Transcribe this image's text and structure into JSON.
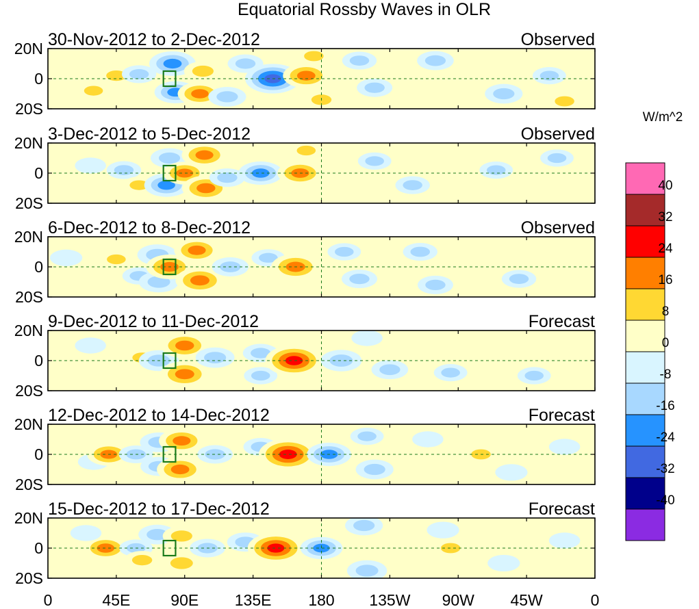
{
  "title": "Equatorial Rossby Waves in OLR",
  "units_label": "W/m^2",
  "lat_ticks": [
    "20N",
    "0",
    "20S"
  ],
  "lon_ticks": [
    "0",
    "45E",
    "90E",
    "135E",
    "180",
    "135W",
    "90W",
    "45W",
    "0"
  ],
  "colorbar": {
    "colors": [
      "#ff69b4",
      "#a52a2a",
      "#ff0000",
      "#ff7f00",
      "#ffd833",
      "#ffffc8",
      "#d9f5ff",
      "#a8d8ff",
      "#2693ff",
      "#4169e1",
      "#00008b",
      "#8b2be2"
    ],
    "labels": [
      "40",
      "32",
      "24",
      "16",
      "8",
      "0",
      "-8",
      "-16",
      "-24",
      "-32",
      "-40"
    ]
  },
  "panels": [
    {
      "dates": "30-Nov-2012 to 2-Dec-2012",
      "status": "Observed"
    },
    {
      "dates": "3-Dec-2012 to 5-Dec-2012",
      "status": "Observed"
    },
    {
      "dates": "6-Dec-2012 to 8-Dec-2012",
      "status": "Observed"
    },
    {
      "dates": "9-Dec-2012 to 11-Dec-2012",
      "status": "Forecast"
    },
    {
      "dates": "12-Dec-2012 to 14-Dec-2012",
      "status": "Forecast"
    },
    {
      "dates": "15-Dec-2012 to 17-Dec-2012",
      "status": "Forecast"
    }
  ],
  "field_anomalies": [
    [
      {
        "lon": 10,
        "lat": 4,
        "value": 7
      },
      {
        "lon": 30,
        "lat": -8,
        "value": 8
      },
      {
        "lon": 45,
        "lat": 2,
        "value": 10
      },
      {
        "lon": 60,
        "lat": 3,
        "value": -9
      },
      {
        "lon": 82,
        "lat": 10,
        "value": -20
      },
      {
        "lon": 84,
        "lat": -9,
        "value": -16
      },
      {
        "lon": 102,
        "lat": 5,
        "value": 12
      },
      {
        "lon": 100,
        "lat": -10,
        "value": 18
      },
      {
        "lon": 118,
        "lat": -12,
        "value": -12
      },
      {
        "lon": 148,
        "lat": 0,
        "value": -28
      },
      {
        "lon": 130,
        "lat": 10,
        "value": -10
      },
      {
        "lon": 170,
        "lat": 2,
        "value": 20
      },
      {
        "lon": 175,
        "lat": 15,
        "value": 9
      },
      {
        "lon": 180,
        "lat": -14,
        "value": 10
      },
      {
        "lon": 205,
        "lat": 12,
        "value": -9
      },
      {
        "lon": 215,
        "lat": -6,
        "value": -10
      },
      {
        "lon": 255,
        "lat": 12,
        "value": -11
      },
      {
        "lon": 265,
        "lat": -3,
        "value": 6
      },
      {
        "lon": 288,
        "lat": 12,
        "value": 7
      },
      {
        "lon": 300,
        "lat": -10,
        "value": -12
      },
      {
        "lon": 330,
        "lat": 2,
        "value": -8
      },
      {
        "lon": 340,
        "lat": -15,
        "value": 9
      }
    ],
    [
      {
        "lon": 10,
        "lat": -5,
        "value": 6
      },
      {
        "lon": 28,
        "lat": 5,
        "value": -6
      },
      {
        "lon": 50,
        "lat": 2,
        "value": -9
      },
      {
        "lon": 60,
        "lat": -8,
        "value": 8
      },
      {
        "lon": 78,
        "lat": -8,
        "value": -18
      },
      {
        "lon": 80,
        "lat": 10,
        "value": -12
      },
      {
        "lon": 90,
        "lat": 0,
        "value": 17
      },
      {
        "lon": 103,
        "lat": 12,
        "value": 19
      },
      {
        "lon": 104,
        "lat": -10,
        "value": 21
      },
      {
        "lon": 118,
        "lat": -3,
        "value": -10
      },
      {
        "lon": 140,
        "lat": 0,
        "value": -18
      },
      {
        "lon": 166,
        "lat": 0,
        "value": 19
      },
      {
        "lon": 170,
        "lat": 15,
        "value": 8
      },
      {
        "lon": 190,
        "lat": -10,
        "value": 6
      },
      {
        "lon": 215,
        "lat": 8,
        "value": -8
      },
      {
        "lon": 240,
        "lat": -8,
        "value": -9
      },
      {
        "lon": 270,
        "lat": 12,
        "value": 7
      },
      {
        "lon": 295,
        "lat": 2,
        "value": -8
      },
      {
        "lon": 335,
        "lat": 10,
        "value": -8
      },
      {
        "lon": 345,
        "lat": -10,
        "value": 7
      }
    ],
    [
      {
        "lon": 12,
        "lat": 6,
        "value": -7
      },
      {
        "lon": 20,
        "lat": -10,
        "value": 7
      },
      {
        "lon": 45,
        "lat": 5,
        "value": 8
      },
      {
        "lon": 60,
        "lat": -6,
        "value": -8
      },
      {
        "lon": 72,
        "lat": 8,
        "value": -14
      },
      {
        "lon": 73,
        "lat": -10,
        "value": -14
      },
      {
        "lon": 80,
        "lat": 0,
        "value": 20
      },
      {
        "lon": 98,
        "lat": 11,
        "value": 19
      },
      {
        "lon": 100,
        "lat": -9,
        "value": 22
      },
      {
        "lon": 120,
        "lat": 0,
        "value": -11
      },
      {
        "lon": 145,
        "lat": 6,
        "value": -8
      },
      {
        "lon": 163,
        "lat": 0,
        "value": 22
      },
      {
        "lon": 195,
        "lat": 10,
        "value": -8
      },
      {
        "lon": 205,
        "lat": -8,
        "value": -10
      },
      {
        "lon": 245,
        "lat": 10,
        "value": -9
      },
      {
        "lon": 255,
        "lat": -12,
        "value": -10
      },
      {
        "lon": 300,
        "lat": 10,
        "value": 7
      },
      {
        "lon": 310,
        "lat": -8,
        "value": -9
      },
      {
        "lon": 335,
        "lat": 0,
        "value": 7
      }
    ],
    [
      {
        "lon": 10,
        "lat": 0,
        "value": 6
      },
      {
        "lon": 28,
        "lat": 10,
        "value": -6
      },
      {
        "lon": 45,
        "lat": -6,
        "value": 6
      },
      {
        "lon": 62,
        "lat": 2,
        "value": 9
      },
      {
        "lon": 73,
        "lat": 0,
        "value": -14
      },
      {
        "lon": 90,
        "lat": 10,
        "value": 21
      },
      {
        "lon": 90,
        "lat": -9,
        "value": 22
      },
      {
        "lon": 110,
        "lat": 2,
        "value": -13
      },
      {
        "lon": 140,
        "lat": 5,
        "value": -10
      },
      {
        "lon": 140,
        "lat": -10,
        "value": -8
      },
      {
        "lon": 162,
        "lat": 0,
        "value": 30
      },
      {
        "lon": 193,
        "lat": 0,
        "value": -15
      },
      {
        "lon": 210,
        "lat": 15,
        "value": -6
      },
      {
        "lon": 225,
        "lat": -6,
        "value": -11
      },
      {
        "lon": 250,
        "lat": 13,
        "value": 7
      },
      {
        "lon": 265,
        "lat": -8,
        "value": -8
      },
      {
        "lon": 295,
        "lat": 5,
        "value": 6
      },
      {
        "lon": 320,
        "lat": -10,
        "value": -8
      },
      {
        "lon": 335,
        "lat": 8,
        "value": 6
      }
    ],
    [
      {
        "lon": 12,
        "lat": 4,
        "value": 6
      },
      {
        "lon": 30,
        "lat": -5,
        "value": -6
      },
      {
        "lon": 40,
        "lat": 0,
        "value": 17
      },
      {
        "lon": 58,
        "lat": 0,
        "value": -9
      },
      {
        "lon": 73,
        "lat": 8,
        "value": -12
      },
      {
        "lon": 73,
        "lat": -8,
        "value": -11
      },
      {
        "lon": 88,
        "lat": 9,
        "value": 19
      },
      {
        "lon": 87,
        "lat": -10,
        "value": 20
      },
      {
        "lon": 110,
        "lat": 0,
        "value": -10
      },
      {
        "lon": 140,
        "lat": 5,
        "value": -9
      },
      {
        "lon": 158,
        "lat": 0,
        "value": 31
      },
      {
        "lon": 185,
        "lat": 0,
        "value": -18
      },
      {
        "lon": 210,
        "lat": 12,
        "value": -8
      },
      {
        "lon": 215,
        "lat": -10,
        "value": -12
      },
      {
        "lon": 240,
        "lat": 2,
        "value": 6
      },
      {
        "lon": 250,
        "lat": 10,
        "value": -6
      },
      {
        "lon": 285,
        "lat": 0,
        "value": 9
      },
      {
        "lon": 305,
        "lat": -12,
        "value": -7
      },
      {
        "lon": 340,
        "lat": 5,
        "value": -6
      }
    ],
    [
      {
        "lon": 12,
        "lat": -4,
        "value": 6
      },
      {
        "lon": 38,
        "lat": 0,
        "value": 18
      },
      {
        "lon": 25,
        "lat": 10,
        "value": -6
      },
      {
        "lon": 58,
        "lat": 0,
        "value": -8
      },
      {
        "lon": 62,
        "lat": -8,
        "value": 10
      },
      {
        "lon": 72,
        "lat": 9,
        "value": -12
      },
      {
        "lon": 88,
        "lat": 8,
        "value": 12
      },
      {
        "lon": 88,
        "lat": -10,
        "value": 14
      },
      {
        "lon": 105,
        "lat": 0,
        "value": -10
      },
      {
        "lon": 130,
        "lat": 4,
        "value": -11
      },
      {
        "lon": 150,
        "lat": 0,
        "value": 29
      },
      {
        "lon": 180,
        "lat": 0,
        "value": -16
      },
      {
        "lon": 208,
        "lat": 15,
        "value": -12
      },
      {
        "lon": 210,
        "lat": -15,
        "value": -14
      },
      {
        "lon": 233,
        "lat": 0,
        "value": 7
      },
      {
        "lon": 265,
        "lat": 0,
        "value": 9
      },
      {
        "lon": 260,
        "lat": 12,
        "value": -7
      },
      {
        "lon": 300,
        "lat": -10,
        "value": -7
      },
      {
        "lon": 340,
        "lat": 5,
        "value": -6
      }
    ]
  ]
}
